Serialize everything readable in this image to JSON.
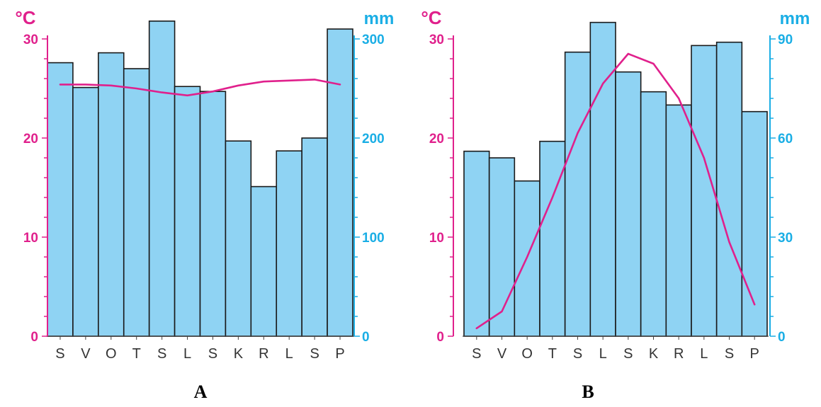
{
  "colors": {
    "temperature": "#e0208c",
    "precipitation": "#1aaee5",
    "bar_fill": "#8fd3f3",
    "bar_stroke": "#1a1a1a",
    "month_text": "#333333"
  },
  "chart_data": [
    {
      "type": "bar",
      "caption": "A",
      "categories": [
        "S",
        "V",
        "O",
        "T",
        "S",
        "L",
        "S",
        "K",
        "R",
        "L",
        "S",
        "P"
      ],
      "left_axis": {
        "unit": "°C",
        "ylim": [
          0,
          30
        ],
        "ticks": [
          0,
          10,
          20,
          30
        ]
      },
      "right_axis": {
        "unit": "mm",
        "ylim": [
          0,
          300
        ],
        "ticks": [
          0,
          100,
          200,
          300
        ]
      },
      "series": [
        {
          "kind": "bar",
          "axis": "right",
          "values": [
            276,
            251,
            286,
            270,
            318,
            252,
            247,
            197,
            151,
            187,
            200,
            310
          ]
        },
        {
          "kind": "line",
          "axis": "left",
          "values": [
            25.4,
            25.4,
            25.3,
            25.0,
            24.6,
            24.3,
            24.7,
            25.3,
            25.7,
            25.8,
            25.9,
            25.4
          ]
        }
      ]
    },
    {
      "type": "bar",
      "caption": "B",
      "categories": [
        "S",
        "V",
        "O",
        "T",
        "S",
        "L",
        "S",
        "K",
        "R",
        "L",
        "S",
        "P"
      ],
      "left_axis": {
        "unit": "°C",
        "ylim": [
          0,
          30
        ],
        "ticks": [
          0,
          10,
          20,
          30
        ]
      },
      "right_axis": {
        "unit": "mm",
        "ylim": [
          0,
          90
        ],
        "ticks": [
          0,
          30,
          60,
          90
        ]
      },
      "series": [
        {
          "kind": "bar",
          "axis": "right",
          "values": [
            56,
            54,
            47,
            59,
            86,
            95,
            80,
            74,
            70,
            88,
            89,
            68
          ]
        },
        {
          "kind": "line",
          "axis": "left",
          "values": [
            0.8,
            2.5,
            8,
            14,
            20.5,
            25.5,
            28.5,
            27.5,
            24,
            18,
            9.5,
            3.2
          ]
        }
      ]
    }
  ]
}
